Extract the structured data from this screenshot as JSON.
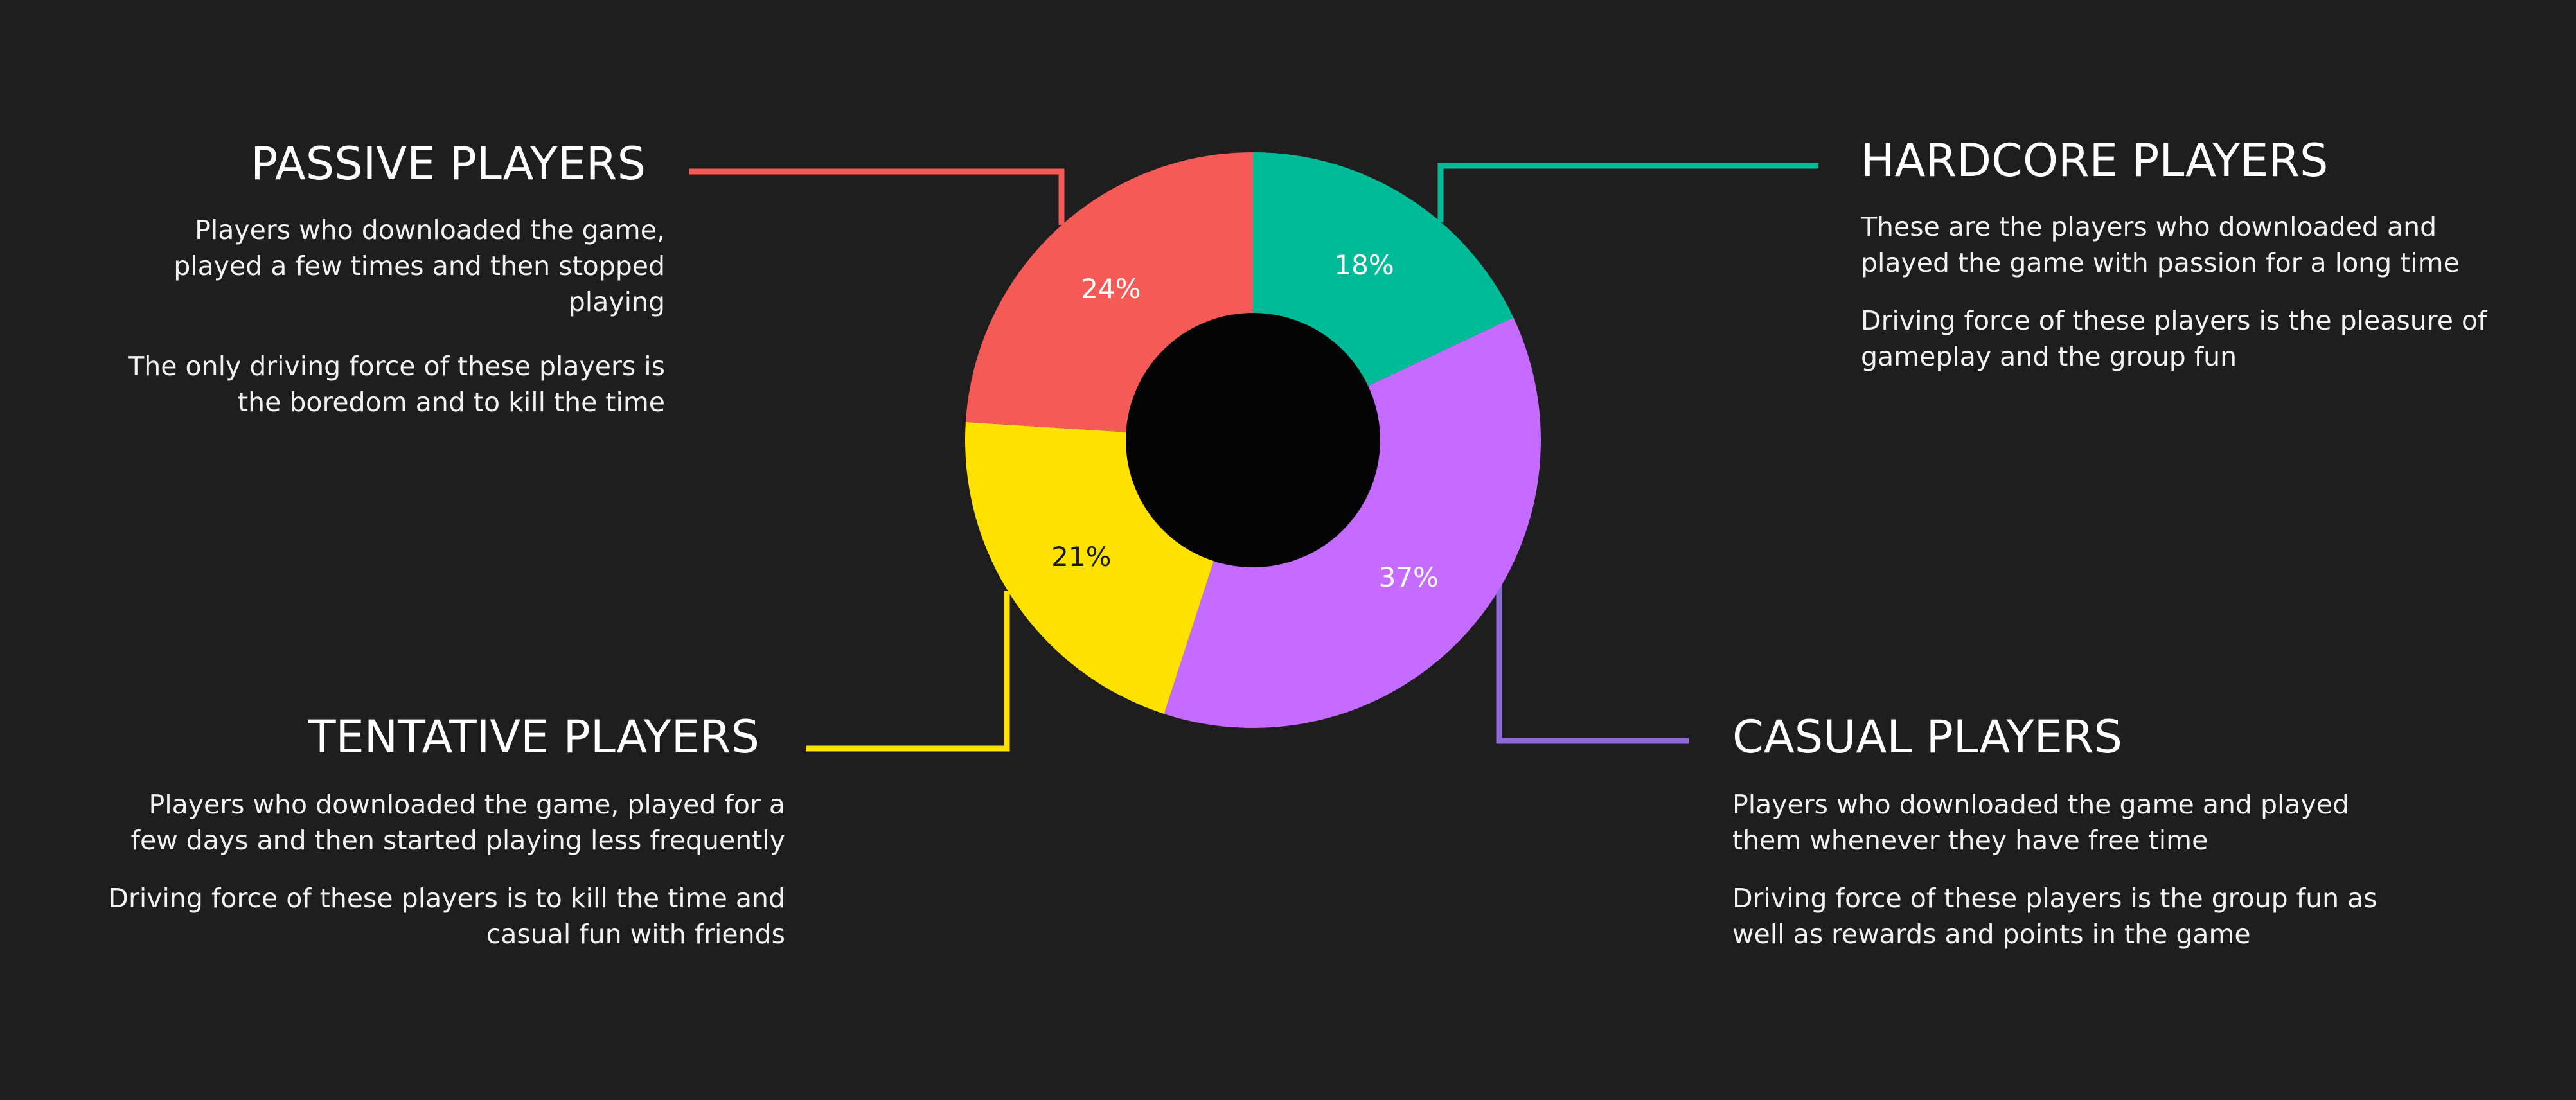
{
  "colors": {
    "background": "#1e1e1e",
    "hole": "#040404",
    "passive": "#f45b56",
    "hardcore": "#00bb97",
    "casual": "#c56bff",
    "tentative": "#ffe100",
    "casual_line": "#8e6bd9"
  },
  "chart_data": {
    "type": "pie",
    "donut": true,
    "categories": [
      "HARDCORE PLAYERS",
      "CASUAL PLAYERS",
      "TENTATIVE PLAYERS",
      "PASSIVE PLAYERS"
    ],
    "values": [
      18,
      37,
      21,
      24
    ],
    "labels": [
      "18%",
      "37%",
      "21%",
      "24%"
    ],
    "colors": [
      "#00bb97",
      "#c56bff",
      "#ffe100",
      "#f45b56"
    ],
    "label_colors": [
      "#ffffff",
      "#ffffff",
      "#1a1a1a",
      "#ffffff"
    ]
  },
  "segments": {
    "passive": {
      "title": "PASSIVE PLAYERS",
      "desc1": "Players who downloaded the game, played a few times and then stopped playing",
      "desc2": "The only driving force of these players is the boredom and to kill the time"
    },
    "hardcore": {
      "title": "HARDCORE PLAYERS",
      "desc1": "These are the players who downloaded and played the game with passion for a long time",
      "desc2": "Driving force of these players is the pleasure of gameplay and the group fun"
    },
    "tentative": {
      "title": "TENTATIVE PLAYERS",
      "desc1": "Players who downloaded the game, played for a few days and then started playing less frequently",
      "desc2": "Driving force of these players is to kill the time and casual fun with friends"
    },
    "casual": {
      "title": "CASUAL PLAYERS",
      "desc1": "Players who downloaded the game and played them whenever they have free time",
      "desc2": "Driving force of these players is the group fun as well as rewards and points in the game"
    }
  }
}
